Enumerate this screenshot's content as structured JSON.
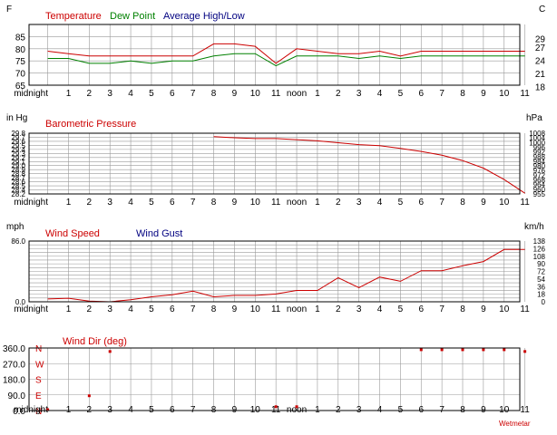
{
  "colors": {
    "red": "#cc0000",
    "green": "#008000",
    "navy": "#000080",
    "grid": "#999999",
    "frame": "#000000"
  },
  "x_labels": [
    "midnight",
    "1",
    "2",
    "3",
    "4",
    "5",
    "6",
    "7",
    "8",
    "9",
    "10",
    "11",
    "noon",
    "1",
    "2",
    "3",
    "4",
    "5",
    "6",
    "7",
    "8",
    "9",
    "10",
    "11"
  ],
  "footer": "Wetmetar",
  "chart_data": [
    {
      "type": "line",
      "title": "Temperature / Dew Point",
      "left_unit": "F",
      "right_unit": "C",
      "legend": [
        "Temperature",
        "Dew Point",
        "Average High/Low"
      ],
      "ylim": [
        65,
        90
      ],
      "y_ticks": [
        "65",
        "70",
        "75",
        "80",
        "85"
      ],
      "right_ticks": [
        "18",
        "21",
        "24",
        "27",
        "29"
      ],
      "right_tick_values_f": [
        64.4,
        69.8,
        75.2,
        80.6,
        84.2
      ],
      "series": [
        {
          "name": "Temperature",
          "color": "red",
          "x": [
            0,
            1,
            2,
            3,
            4,
            5,
            6,
            7,
            8,
            9,
            10,
            11,
            12,
            13,
            14,
            15,
            16,
            17,
            18,
            19,
            20,
            21,
            22,
            23
          ],
          "values": [
            79,
            78,
            77,
            77,
            77,
            77,
            77,
            77,
            82,
            82,
            81,
            74,
            80,
            79,
            78,
            78,
            79,
            77,
            79,
            79,
            79,
            79,
            79,
            79
          ]
        },
        {
          "name": "Dew Point",
          "color": "green",
          "x": [
            0,
            1,
            2,
            3,
            4,
            5,
            6,
            7,
            8,
            9,
            10,
            11,
            12,
            13,
            14,
            15,
            16,
            17,
            18,
            19,
            20,
            21,
            22,
            23
          ],
          "values": [
            76,
            76,
            74,
            74,
            75,
            74,
            75,
            75,
            77,
            78,
            78,
            73,
            77,
            77,
            77,
            76,
            77,
            76,
            77,
            77,
            77,
            77,
            77,
            77
          ]
        }
      ]
    },
    {
      "type": "line",
      "title": "Barometric Pressure",
      "left_unit": "in Hg",
      "right_unit": "hPa",
      "ylim": [
        28.2,
        29.8
      ],
      "y_ticks": [
        "28.2",
        "28.4",
        "28.5",
        "28.6",
        "28.7",
        "28.8",
        "28.9",
        "29.0",
        "29.1",
        "29.2",
        "29.3",
        "29.4",
        "29.5",
        "29.6",
        "29.7",
        "29.8"
      ],
      "right_ticks": [
        "955",
        "960",
        "964",
        "968",
        "972",
        "976",
        "980",
        "984",
        "988",
        "992",
        "996",
        "1000",
        "1004",
        "1008"
      ],
      "series": [
        {
          "name": "Barometric Pressure",
          "color": "red",
          "x": [
            8,
            9,
            10,
            11,
            12,
            13,
            14,
            15,
            16,
            17,
            18,
            19,
            20,
            21,
            22,
            23
          ],
          "values": [
            29.71,
            29.68,
            29.66,
            29.66,
            29.63,
            29.6,
            29.55,
            29.5,
            29.47,
            29.4,
            29.32,
            29.22,
            29.08,
            28.88,
            28.58,
            28.22
          ]
        }
      ]
    },
    {
      "type": "line",
      "title": "Wind Speed / Wind Gust",
      "left_unit": "mph",
      "right_unit": "km/h",
      "legend": [
        "Wind Speed",
        "Wind Gust"
      ],
      "ylim": [
        0,
        86
      ],
      "y_ticks": [
        "0.0",
        "86.0"
      ],
      "right_ticks": [
        "0",
        "18",
        "36",
        "54",
        "72",
        "90",
        "108",
        "126",
        "138"
      ],
      "series": [
        {
          "name": "Wind Speed",
          "color": "red",
          "x": [
            0,
            1,
            2,
            3,
            4,
            5,
            6,
            7,
            8,
            9,
            10,
            11,
            12,
            13,
            14,
            15,
            16,
            17,
            18,
            19,
            20,
            21,
            22,
            23
          ],
          "values": [
            4,
            5,
            1,
            0,
            3,
            7,
            10,
            15,
            7,
            9,
            9,
            11,
            16,
            16,
            34,
            20,
            35,
            29,
            44,
            44,
            51,
            57,
            74,
            74
          ]
        }
      ]
    },
    {
      "type": "scatter",
      "title": "Wind Dir (deg)",
      "ylim": [
        0,
        360
      ],
      "y_ticks": [
        "0.0",
        "90.0",
        "180.0",
        "270.0",
        "360.0"
      ],
      "compass": [
        "N",
        "E",
        "S",
        "W",
        "N"
      ],
      "series": [
        {
          "name": "Wind Dir",
          "color": "red",
          "x": [
            0,
            2,
            3,
            11,
            12,
            18,
            19,
            20,
            21,
            22,
            23
          ],
          "values": [
            5,
            85,
            340,
            22,
            22,
            350,
            350,
            350,
            350,
            350,
            340
          ]
        }
      ]
    }
  ]
}
